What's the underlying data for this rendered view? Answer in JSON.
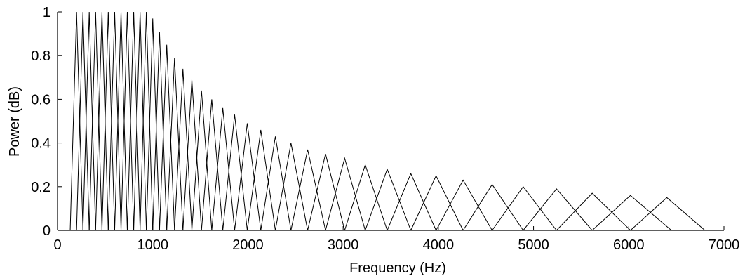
{
  "chart_data": {
    "type": "line",
    "xlabel": "Frequency (Hz)",
    "ylabel": "Power (dB)",
    "xlim": [
      0,
      7000
    ],
    "ylim": [
      0,
      1
    ],
    "xticks": [
      0,
      1000,
      2000,
      3000,
      4000,
      5000,
      6000,
      7000
    ],
    "xtick_labels": [
      "0",
      "1000",
      "2000",
      "3000",
      "4000",
      "5000",
      "6000",
      "7000"
    ],
    "yticks": [
      0,
      0.2,
      0.4,
      0.6,
      0.8,
      1
    ],
    "ytick_labels": [
      "0",
      "0.2",
      "0.4",
      "0.6",
      "0.8",
      "1"
    ],
    "grid": false,
    "line_color": "#000000",
    "series_shape": "triangular filters; each triangle listed as [start_hz, peak_hz, end_hz, peak_value]",
    "filters": [
      [
        133,
        200,
        267,
        1.0
      ],
      [
        200,
        267,
        333,
        1.0
      ],
      [
        267,
        333,
        400,
        1.0
      ],
      [
        333,
        400,
        467,
        1.0
      ],
      [
        400,
        467,
        533,
        1.0
      ],
      [
        467,
        533,
        600,
        1.0
      ],
      [
        533,
        600,
        667,
        1.0
      ],
      [
        600,
        667,
        733,
        1.0
      ],
      [
        667,
        733,
        800,
        1.0
      ],
      [
        733,
        800,
        867,
        1.0
      ],
      [
        800,
        867,
        933,
        1.0
      ],
      [
        867,
        933,
        1000,
        1.0
      ],
      [
        933,
        1000,
        1071,
        0.97
      ],
      [
        1000,
        1071,
        1147,
        0.91
      ],
      [
        1071,
        1147,
        1229,
        0.85
      ],
      [
        1147,
        1229,
        1317,
        0.79
      ],
      [
        1229,
        1317,
        1411,
        0.74
      ],
      [
        1317,
        1411,
        1512,
        0.69
      ],
      [
        1411,
        1512,
        1620,
        0.64
      ],
      [
        1512,
        1620,
        1736,
        0.6
      ],
      [
        1620,
        1736,
        1860,
        0.56
      ],
      [
        1736,
        1860,
        1993,
        0.53
      ],
      [
        1860,
        1993,
        2135,
        0.49
      ],
      [
        1993,
        2135,
        2288,
        0.46
      ],
      [
        2135,
        2288,
        2452,
        0.43
      ],
      [
        2288,
        2452,
        2627,
        0.4
      ],
      [
        2452,
        2627,
        2815,
        0.37
      ],
      [
        2627,
        2815,
        3016,
        0.35
      ],
      [
        2815,
        3016,
        3232,
        0.33
      ],
      [
        3016,
        3232,
        3463,
        0.3
      ],
      [
        3232,
        3463,
        3711,
        0.28
      ],
      [
        3463,
        3711,
        3976,
        0.26
      ],
      [
        3711,
        3976,
        4260,
        0.25
      ],
      [
        3976,
        4260,
        4565,
        0.23
      ],
      [
        4260,
        4565,
        4891,
        0.21
      ],
      [
        4565,
        4891,
        5241,
        0.2
      ],
      [
        4891,
        5241,
        5616,
        0.19
      ],
      [
        5241,
        5616,
        6018,
        0.17
      ],
      [
        5616,
        6018,
        6448,
        0.16
      ],
      [
        6018,
        6400,
        6800,
        0.15
      ]
    ]
  }
}
